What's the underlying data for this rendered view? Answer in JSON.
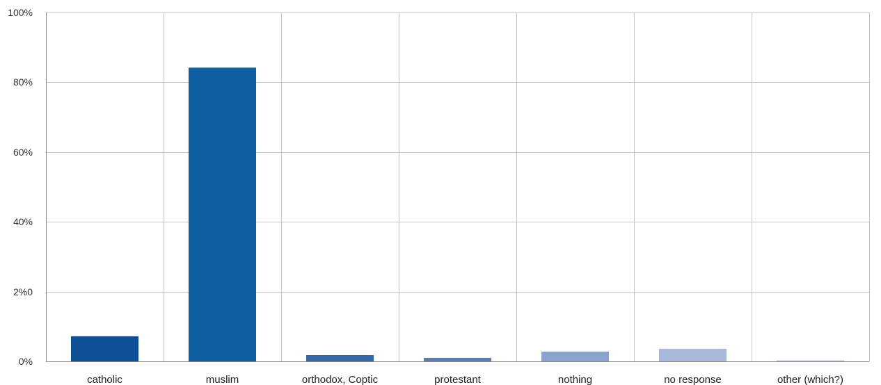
{
  "chart_data": {
    "type": "bar",
    "categories": [
      "catholic",
      "muslim",
      "orthodox, Coptic",
      "protestant",
      "nothing",
      "no response",
      "other (which?)"
    ],
    "values": [
      7.2,
      84.2,
      1.8,
      1.0,
      2.8,
      3.6,
      0.3
    ],
    "bar_colors": [
      "#0d5194",
      "#1061a3",
      "#3566a5",
      "#5b7db3",
      "#8aa2cc",
      "#a8b9dc",
      "#b8c7e2"
    ],
    "y_tick_labels": [
      "0%",
      "2%0",
      "40%",
      "60%",
      "80%",
      "100%"
    ],
    "y_ticks": [
      0,
      20,
      40,
      60,
      80,
      100
    ],
    "ylim": [
      0,
      100
    ],
    "grid": true,
    "title": "",
    "xlabel": "",
    "ylabel": ""
  }
}
